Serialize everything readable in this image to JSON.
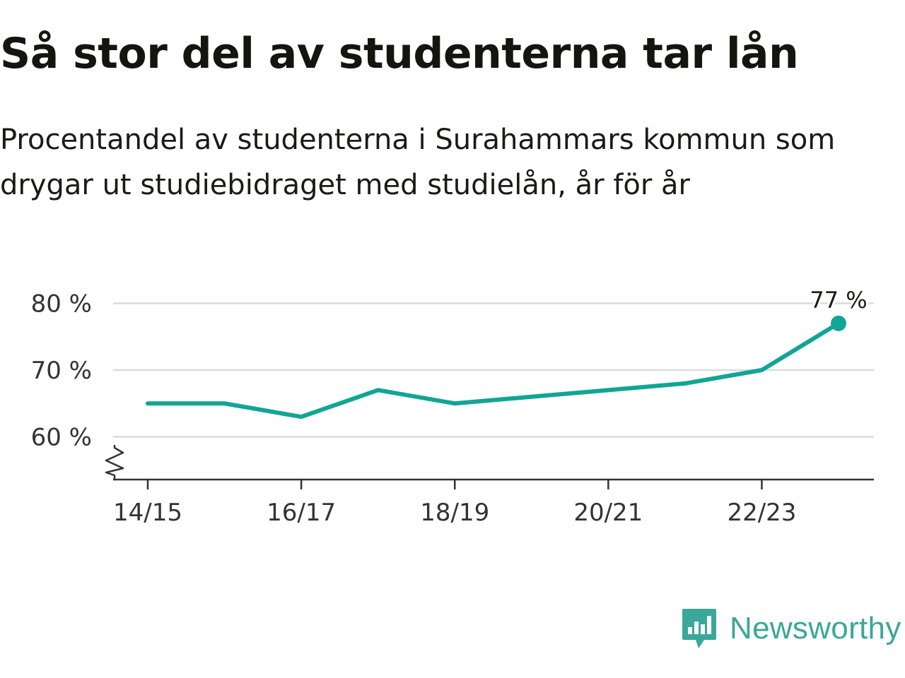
{
  "header": {
    "title": "Så stor del av studenterna tar lån",
    "subtitle": "Procentandel av studenterna i Surahammars kommun som drygar ut studiebidraget med studielån, år för år"
  },
  "brand": {
    "name": "Newsworthy",
    "logo_icon": "newsworthy-bar-chart-icon",
    "color": "#3aa79a"
  },
  "chart_data": {
    "type": "line",
    "title": "Så stor del av studenterna tar lån",
    "subtitle": "Procentandel av studenterna i Surahammars kommun som drygar ut studiebidraget med studielån, år för år",
    "x": [
      "14/15",
      "15/16",
      "16/17",
      "17/18",
      "18/19",
      "19/20",
      "20/21",
      "21/22",
      "22/23",
      "23/24"
    ],
    "x_tick_labels": [
      "14/15",
      "16/17",
      "18/19",
      "20/21",
      "22/23"
    ],
    "series": [
      {
        "values": [
          65,
          65,
          63,
          67,
          65,
          66,
          67,
          68,
          70,
          77
        ],
        "color": "#11a595"
      }
    ],
    "y_tick_labels": [
      "60 %",
      "70 %",
      "80 %"
    ],
    "y_ticks": [
      60,
      70,
      80
    ],
    "ylim": [
      54,
      80
    ],
    "axis_break": true,
    "grid": true,
    "last_point_label": "77 %",
    "grid_color": "#dcdcdc",
    "axis_color": "#333333"
  }
}
